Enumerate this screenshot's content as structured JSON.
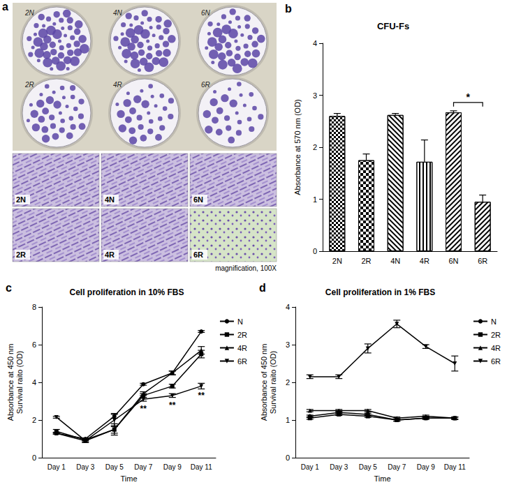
{
  "photo_panel": {
    "panel": "a",
    "plates": [
      "2N",
      "4N",
      "6N",
      "2R",
      "4R",
      "6R"
    ],
    "micrographs": [
      "2N",
      "4N",
      "6N",
      "2R",
      "4R",
      "6R"
    ],
    "caption": "magnification, 100X"
  },
  "chart_data": [
    {
      "panel": "b",
      "type": "bar",
      "title": "CFU-Fs",
      "ylabel": "Absorbance at 570 nm (OD)",
      "categories": [
        "2N",
        "2R",
        "4N",
        "4R",
        "6N",
        "6R"
      ],
      "values": [
        2.6,
        1.75,
        2.62,
        1.72,
        2.67,
        0.95
      ],
      "errors": [
        0.05,
        0.12,
        0.03,
        0.42,
        0.03,
        0.13
      ],
      "colors": [
        "#ffffff",
        "#ffffff",
        "#ffffff",
        "#ffffff",
        "#ffffff",
        "#ffffff"
      ],
      "ylim": [
        0,
        4
      ],
      "yticks": [
        0,
        1,
        2,
        3,
        4
      ],
      "grid": false,
      "annotations": [
        {
          "text": "*",
          "between": [
            "6N",
            "6R"
          ]
        }
      ]
    },
    {
      "panel": "c",
      "type": "line",
      "title": "Cell proliferation in 10% FBS",
      "xlabel": "Time",
      "ylabel": [
        "Absorbance at 450 nm",
        "Survival raito (OD)"
      ],
      "categories": [
        "Day 1",
        "Day 3",
        "Day 5",
        "Day 7",
        "Day 9",
        "Day 11"
      ],
      "series": [
        {
          "name": "N",
          "color": "#000000",
          "marker": "circle",
          "values": [
            1.3,
            1.0,
            2.2,
            3.9,
            4.5,
            6.7
          ],
          "errors": [
            0.05,
            0.05,
            0.1,
            0.05,
            0.1,
            0.05
          ]
        },
        {
          "name": "2R",
          "color": "#000000",
          "marker": "square",
          "values": [
            1.4,
            0.95,
            1.5,
            3.3,
            3.8,
            5.5
          ],
          "errors": [
            0.1,
            0.05,
            0.3,
            0.1,
            0.1,
            0.2
          ]
        },
        {
          "name": "4R",
          "color": "#000000",
          "marker": "triangle",
          "values": [
            1.3,
            0.9,
            1.5,
            3.4,
            4.5,
            5.7
          ],
          "errors": [
            0.05,
            0.05,
            0.2,
            0.1,
            0.1,
            0.2
          ]
        },
        {
          "name": "6R",
          "color": "#000000",
          "marker": "triangle-down",
          "values": [
            2.15,
            0.9,
            2.0,
            3.1,
            3.3,
            3.8
          ],
          "errors": [
            0.05,
            0.1,
            0.35,
            0.1,
            0.1,
            0.15
          ]
        }
      ],
      "ylim": [
        0,
        8
      ],
      "yticks": [
        0,
        2,
        4,
        6,
        8
      ],
      "grid": false,
      "legend": "right",
      "annotations": [
        {
          "text": "**",
          "x": "Day 7",
          "series": "6R"
        },
        {
          "text": "**",
          "x": "Day 9",
          "series": "6R"
        },
        {
          "text": "**",
          "x": "Day 11",
          "series": "6R"
        }
      ]
    },
    {
      "panel": "d",
      "type": "line",
      "title": "Cell proliferation in 1% FBS",
      "xlabel": "Time",
      "ylabel": [
        "Absorbance of 450 nm",
        "Survival raito (OD)"
      ],
      "categories": [
        "Day 1",
        "Day 3",
        "Day 5",
        "Day 7",
        "Day 9",
        "Day 11"
      ],
      "series": [
        {
          "name": "N",
          "color": "#000000",
          "marker": "circle",
          "values": [
            1.1,
            1.2,
            1.15,
            1.0,
            1.05,
            1.05
          ],
          "errors": [
            0.03,
            0.03,
            0.03,
            0.03,
            0.03,
            0.03
          ]
        },
        {
          "name": "2R",
          "color": "#000000",
          "marker": "square",
          "values": [
            1.05,
            1.15,
            1.1,
            1.0,
            1.05,
            1.05
          ],
          "errors": [
            0.03,
            0.03,
            0.03,
            0.03,
            0.03,
            0.03
          ]
        },
        {
          "name": "4R",
          "color": "#000000",
          "marker": "triangle",
          "values": [
            1.25,
            1.25,
            1.25,
            1.05,
            1.1,
            1.05
          ],
          "errors": [
            0.03,
            0.03,
            0.03,
            0.03,
            0.03,
            0.03
          ]
        },
        {
          "name": "6R",
          "color": "#000000",
          "marker": "triangle-down",
          "values": [
            2.15,
            2.15,
            2.9,
            3.55,
            2.95,
            2.5
          ],
          "errors": [
            0.05,
            0.05,
            0.12,
            0.1,
            0.05,
            0.2
          ]
        }
      ],
      "ylim": [
        0,
        4
      ],
      "yticks": [
        0,
        1,
        2,
        3,
        4
      ],
      "grid": false,
      "legend": "right"
    }
  ]
}
